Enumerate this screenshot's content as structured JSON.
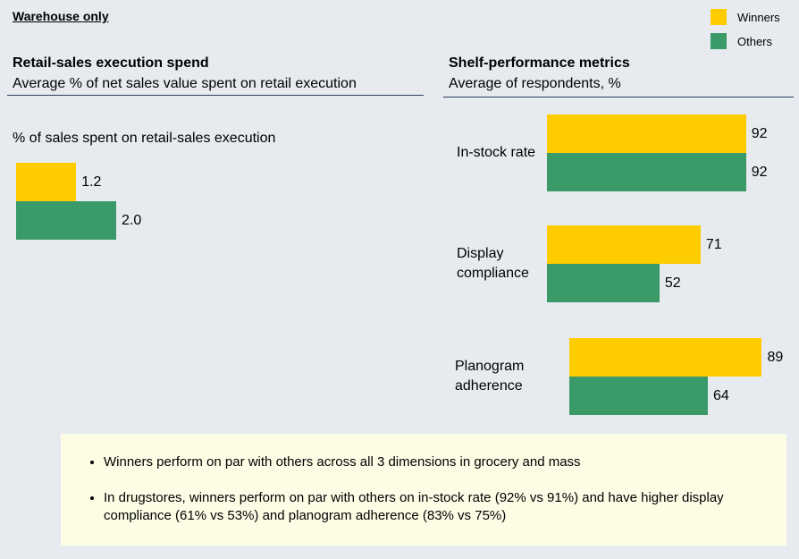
{
  "header": "Warehouse only",
  "notes": [
    "Winners perform on par with others across all 3 dimensions in grocery and mass",
    "In drugstores, winners perform on par with others on in-stock rate (92% vs 91%) and have higher display compliance (61% vs 53%) and planogram adherence (83% vs 75%)"
  ],
  "chart_data": [
    {
      "type": "bar",
      "orientation": "horizontal",
      "title": "Retail-sales execution spend",
      "subtitle": "Average % of net sales value spent on retail execution",
      "categories": [
        "% of sales spent on retail-sales execution"
      ],
      "series": [
        {
          "color": "#ffcc00",
          "values": [
            1.2
          ]
        },
        {
          "color": "#3a9a68",
          "values": [
            2.0
          ],
          "value_labels": [
            "2.0"
          ]
        }
      ],
      "xlim": [
        0,
        3.5
      ]
    },
    {
      "type": "bar",
      "orientation": "horizontal",
      "title": "Shelf-performance metrics",
      "subtitle": "Average of respondents, %",
      "categories": [
        "In-stock rate",
        "Display compliance",
        "Planogram adherence"
      ],
      "series": [
        {
          "name": "Winners",
          "color": "#ffcc00",
          "values": [
            92,
            71,
            89
          ]
        },
        {
          "name": "Others",
          "color": "#3a9a68",
          "values": [
            92,
            52,
            64
          ]
        }
      ],
      "xlim": [
        0,
        95
      ]
    }
  ]
}
